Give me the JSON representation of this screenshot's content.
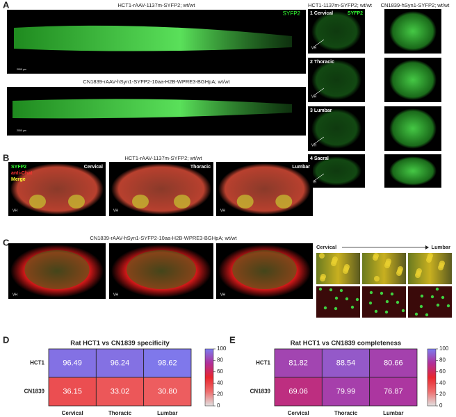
{
  "panels": {
    "A": {
      "label": "A",
      "caption_top": "HCT1-rAAV-1137m-SYFP2; wt/wt",
      "marker": "SYFP2",
      "scale": "2000 µm",
      "caption_bottom": "CN1839-rAAV-hSyn1-SYFP2-10aa-H2B-WPRE3-BGHpA; wt/wt",
      "col_headers": [
        "HCT1-1137m-SYFP2; wt/wt",
        "CN1839-hSyn1-SYFP2; wt/wt"
      ],
      "sections": [
        "1 Cervical",
        "2 Thoracic",
        "3 Lumbar",
        "4 Sacral"
      ],
      "section_marker": "SYFP2",
      "vh": "VH"
    },
    "B": {
      "label": "B",
      "caption": "HCT1-rAAV-1137m-SYFP2; wt/wt",
      "legend": [
        "SYFP2",
        "anti-Chat",
        "Merge"
      ],
      "regions": [
        "Cervical",
        "Thoracic",
        "Lumbar"
      ],
      "vh": "VH"
    },
    "C": {
      "label": "C",
      "caption": "CN1839-rAAV-hSyn1-SYFP2-10aa-H2B-WPRE3-BGHpA; wt/wt",
      "vh": "VH"
    },
    "inset": {
      "from": "Cervical",
      "to": "Lumbar"
    }
  },
  "chart_data": [
    {
      "type": "heatmap",
      "label": "D",
      "title": "Rat HCT1 vs CN1839 specificity",
      "rows": [
        "HCT1",
        "CN1839"
      ],
      "columns": [
        "Cervical",
        "Thoracic",
        "Lumbar"
      ],
      "values": [
        [
          96.49,
          96.24,
          98.62
        ],
        [
          36.15,
          33.02,
          30.8
        ]
      ],
      "value_labels": [
        [
          "96.49",
          "96.24",
          "98.62"
        ],
        [
          "36.15",
          "33.02",
          "30.80"
        ]
      ],
      "zlim": [
        0,
        100
      ],
      "zticks": [
        0,
        20,
        40,
        60,
        80,
        100
      ],
      "colorscale": [
        "#e0e0e0",
        "#ee6e6e",
        "#e8262e",
        "#b0309a",
        "#7c7cf0"
      ]
    },
    {
      "type": "heatmap",
      "label": "E",
      "title": "Rat HCT1 vs CN1839 completeness",
      "rows": [
        "HCT1",
        "CN1839"
      ],
      "columns": [
        "Cervical",
        "Thoracic",
        "Lumbar"
      ],
      "values": [
        [
          81.82,
          88.54,
          80.66
        ],
        [
          69.06,
          79.99,
          76.87
        ]
      ],
      "value_labels": [
        [
          "81.82",
          "88.54",
          "80.66"
        ],
        [
          "69.06",
          "79.99",
          "76.87"
        ]
      ],
      "zlim": [
        0,
        100
      ],
      "zticks": [
        0,
        20,
        40,
        60,
        80,
        100
      ],
      "colorscale": [
        "#e0e0e0",
        "#ee6e6e",
        "#e8262e",
        "#b0309a",
        "#7c7cf0"
      ]
    }
  ]
}
